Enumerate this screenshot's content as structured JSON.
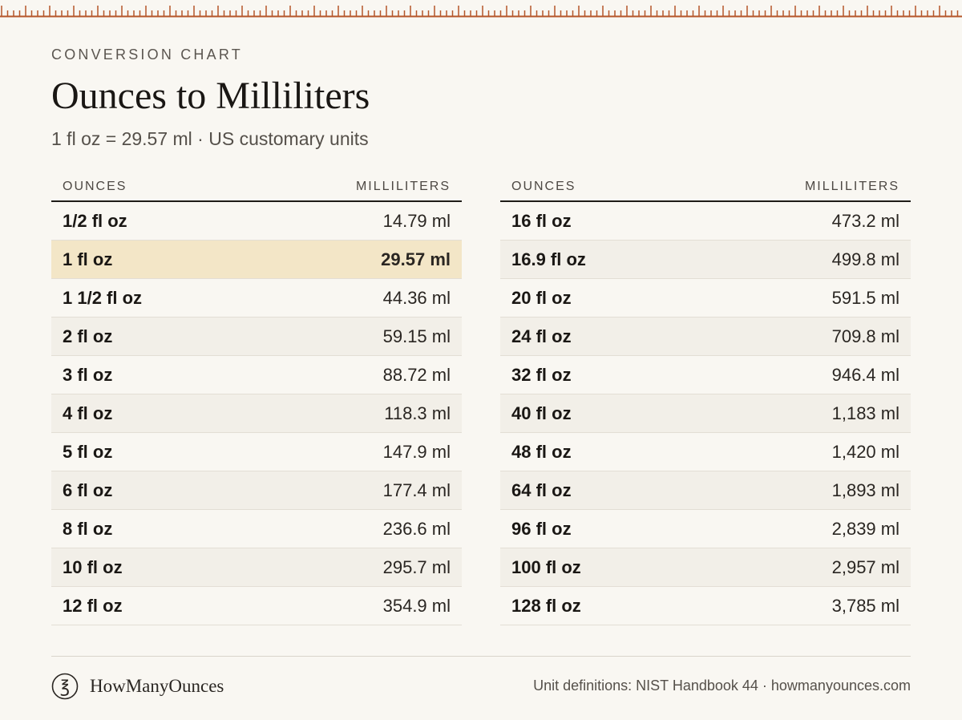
{
  "header": {
    "eyebrow": "CONVERSION CHART",
    "title": "Ounces to Milliliters",
    "subtitle": "1 fl oz = 29.57 ml · US customary units"
  },
  "colors": {
    "background": "#f9f7f2",
    "ruler": "#b5562a",
    "highlight": "#f3e6c7",
    "row_alt": "#f2efe8",
    "text": "#1f1c18"
  },
  "tables": {
    "left": {
      "header_ounces": "OUNCES",
      "header_ml": "MILLILITERS",
      "rows": [
        {
          "oz": "1/2 fl oz",
          "ml": "14.79 ml"
        },
        {
          "oz": "1 fl oz",
          "ml": "29.57 ml",
          "highlight": true
        },
        {
          "oz": "1 1/2 fl oz",
          "ml": "44.36 ml"
        },
        {
          "oz": "2 fl oz",
          "ml": "59.15 ml"
        },
        {
          "oz": "3 fl oz",
          "ml": "88.72 ml"
        },
        {
          "oz": "4 fl oz",
          "ml": "118.3 ml"
        },
        {
          "oz": "5 fl oz",
          "ml": "147.9 ml"
        },
        {
          "oz": "6 fl oz",
          "ml": "177.4 ml"
        },
        {
          "oz": "8 fl oz",
          "ml": "236.6 ml"
        },
        {
          "oz": "10 fl oz",
          "ml": "295.7 ml"
        },
        {
          "oz": "12 fl oz",
          "ml": "354.9 ml"
        }
      ]
    },
    "right": {
      "header_ounces": "OUNCES",
      "header_ml": "MILLILITERS",
      "rows": [
        {
          "oz": "16 fl oz",
          "ml": "473.2 ml"
        },
        {
          "oz": "16.9 fl oz",
          "ml": "499.8 ml"
        },
        {
          "oz": "20 fl oz",
          "ml": "591.5 ml"
        },
        {
          "oz": "24 fl oz",
          "ml": "709.8 ml"
        },
        {
          "oz": "32 fl oz",
          "ml": "946.4 ml"
        },
        {
          "oz": "40 fl oz",
          "ml": "1,183 ml"
        },
        {
          "oz": "48 fl oz",
          "ml": "1,420 ml"
        },
        {
          "oz": "64 fl oz",
          "ml": "1,893 ml"
        },
        {
          "oz": "96 fl oz",
          "ml": "2,839 ml"
        },
        {
          "oz": "100 fl oz",
          "ml": "2,957 ml"
        },
        {
          "oz": "128 fl oz",
          "ml": "3,785 ml"
        }
      ]
    }
  },
  "footer": {
    "logo_icon": "ounce-symbol-icon",
    "logo_glyph": "℥",
    "brand": "HowManyOunces",
    "source": "Unit definitions: NIST Handbook 44 · howmanyounces.com"
  }
}
